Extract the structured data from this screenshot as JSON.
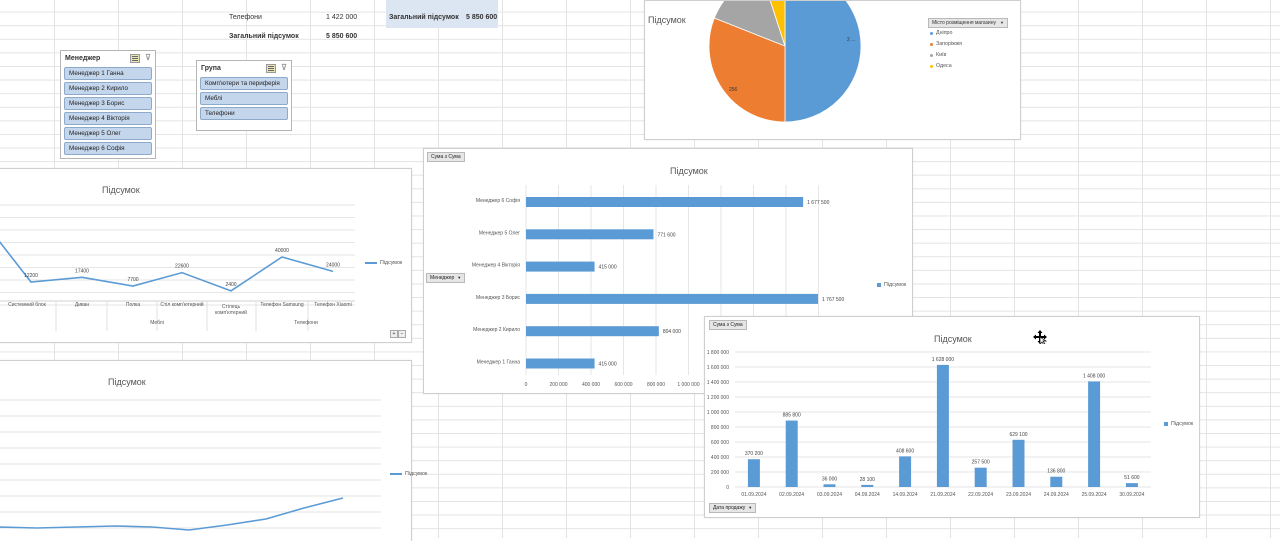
{
  "pivot": {
    "row_phones_label": "Телефони",
    "row_phones_value": "1 422 000",
    "grand_total_label": "Загальний підсумок",
    "grand_total_value": "5 850 600",
    "right_total_label": "Загальний підсумок",
    "right_total_value": "5 850 600"
  },
  "slicer_manager": {
    "title": "Менеджер",
    "items": [
      "Менеджер 1 Ганна",
      "Менеджер 2 Кирило",
      "Менеджер 3 Борис",
      "Менеджер 4 Вікторія",
      "Менеджер 5 Олег",
      "Менеджер 6 Софія"
    ]
  },
  "slicer_group": {
    "title": "Група",
    "items": [
      "Комп'ютери та периферія",
      "Меблі",
      "Телефони"
    ]
  },
  "pie_chart": {
    "title": "Підсумок",
    "dropdown": "Місто розміщення магазину",
    "legend": [
      "Дніпро",
      "Запоріжжя",
      "Київ",
      "Одеса"
    ],
    "colors": [
      "#5b9bd5",
      "#ed7d31",
      "#a5a5a5",
      "#ffc000"
    ],
    "labels": [
      "2 ...",
      "256"
    ],
    "chart_data": {
      "type": "pie",
      "categories": [
        "Дніпро",
        "Запоріжжя",
        "Київ",
        "Одеса"
      ],
      "values": [
        50,
        31,
        14,
        5
      ]
    }
  },
  "line_chart_1": {
    "title": "Підсумок",
    "legend": "Підсумок",
    "group_labels": [
      "Меблі",
      "Телефони"
    ],
    "chart_data": {
      "type": "line",
      "categories": [
        "Системний блок",
        "Диван",
        "Полка",
        "Стіл комп'ютерний",
        "Стілець комп'ютерний",
        "Телефон Samsung",
        "Телефон Xiaomi"
      ],
      "series": [
        {
          "name": "Підсумок",
          "values": [
            12200,
            17400,
            7700,
            22600,
            2400,
            40000,
            24000
          ]
        }
      ],
      "data_labels": [
        "12200",
        "17400",
        "7700",
        "22600",
        "2400",
        "40000",
        "24000"
      ]
    }
  },
  "line_chart_2": {
    "title": "Підсумок",
    "legend": "Підсумок"
  },
  "bar_chart_h": {
    "title": "Підсумок",
    "value_button": "Сума з Сума",
    "axis_button": "Менеджер",
    "legend": "Підсумок",
    "chart_data": {
      "type": "bar",
      "categories": [
        "Менеджер 6 Софія",
        "Менеджер 5 Олег",
        "Менеджер 4 Вікторія",
        "Менеджер 3 Борис",
        "Менеджер 2 Кирило",
        "Менеджер 1 Ганна"
      ],
      "values": [
        1677500,
        771600,
        415000,
        1767500,
        804000,
        415000
      ],
      "data_labels": [
        "1 677 500",
        "771 600",
        "415 000",
        "1 767 500",
        "804 000",
        "415 000"
      ],
      "x_ticks": [
        "0",
        "200 000",
        "400 000",
        "600 000",
        "800 000",
        "1 000 000"
      ]
    }
  },
  "bar_chart_v": {
    "title": "Підсумок",
    "value_button": "Сума з Сума",
    "axis_button": "Дата продажу",
    "legend": "Підсумок",
    "chart_data": {
      "type": "bar",
      "categories": [
        "01.09.2024",
        "02.09.2024",
        "03.09.2024",
        "04.09.2024",
        "14.09.2024",
        "21.09.2024",
        "22.09.2024",
        "23.09.2024",
        "24.09.2024",
        "25.09.2024",
        "30.09.2024"
      ],
      "values": [
        370200,
        885800,
        36000,
        28100,
        408600,
        1628000,
        257500,
        629100,
        136800,
        1408000,
        51600
      ],
      "data_labels": [
        "370 200",
        "885 800",
        "36 000",
        "28 100",
        "408 600",
        "1 628 000",
        "257 500",
        "629 100",
        "136 800",
        "1 408 000",
        "51 600"
      ],
      "y_ticks": [
        "0",
        "200 000",
        "400 000",
        "600 000",
        "800 000",
        "1 000 000",
        "1 200 000",
        "1 400 000",
        "1 600 000",
        "1 800 000"
      ],
      "ylim": [
        0,
        1800000
      ]
    }
  }
}
